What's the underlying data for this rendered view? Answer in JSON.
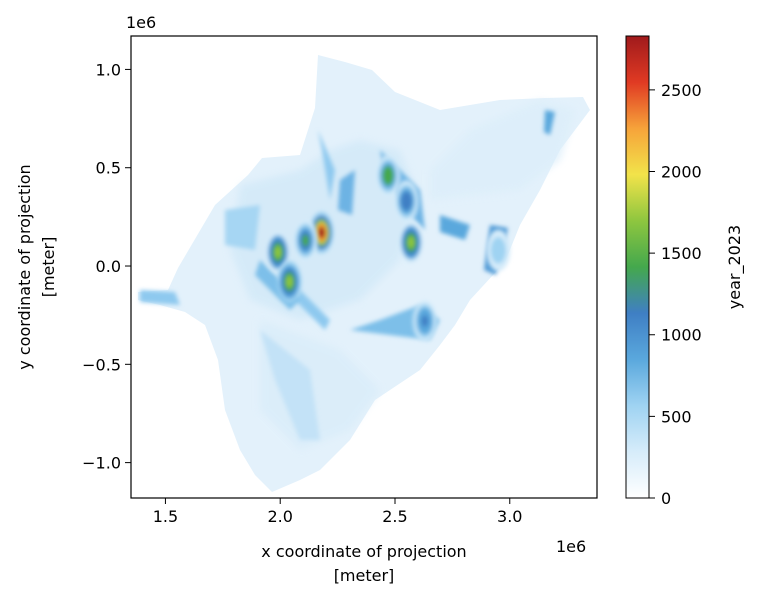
{
  "chart_data": {
    "type": "heatmap",
    "xlabel_line1": "x coordinate of projection",
    "xlabel_line2": "[meter]",
    "ylabel_line1": "y coordinate of projection",
    "ylabel_line2": "[meter]",
    "x_offset_text": "1e6",
    "y_offset_text": "1e6",
    "xlim": [
      1.35,
      3.38
    ],
    "ylim": [
      -1.18,
      1.17
    ],
    "x_ticks": [
      1.5,
      2.0,
      2.5,
      3.0
    ],
    "x_tick_labels": [
      "1.5",
      "2.0",
      "2.5",
      "3.0"
    ],
    "y_ticks": [
      1.0,
      0.5,
      0.0,
      -0.5,
      -1.0
    ],
    "y_tick_labels": [
      "1.0",
      "0.5",
      "0.0",
      "−0.5",
      "−1.0"
    ],
    "colorbar": {
      "label": "year_2023",
      "range": [
        0,
        2830
      ],
      "ticks": [
        0,
        500,
        1000,
        1500,
        2000,
        2500
      ],
      "tick_labels": [
        "0",
        "500",
        "1000",
        "1500",
        "2000",
        "2500"
      ],
      "colors": [
        "#ffffff",
        "#d6ecfa",
        "#9fd3f2",
        "#5aa8dd",
        "#3f7fc4",
        "#44a84d",
        "#8ec63f",
        "#f2e34a",
        "#f6a33a",
        "#e03a23",
        "#a01a1c"
      ]
    },
    "hotspots": [
      {
        "x": 2.18,
        "y": 0.17,
        "value": 2700
      },
      {
        "x": 1.99,
        "y": 0.07,
        "value": 1600
      },
      {
        "x": 2.04,
        "y": -0.08,
        "value": 1700
      },
      {
        "x": 2.47,
        "y": 0.46,
        "value": 1500
      },
      {
        "x": 2.55,
        "y": 0.33,
        "value": 1200
      },
      {
        "x": 2.57,
        "y": 0.12,
        "value": 1600
      },
      {
        "x": 2.63,
        "y": -0.28,
        "value": 1100
      },
      {
        "x": 2.11,
        "y": 0.13,
        "value": 1300
      },
      {
        "x": 2.95,
        "y": 0.08,
        "value": 700
      }
    ]
  }
}
